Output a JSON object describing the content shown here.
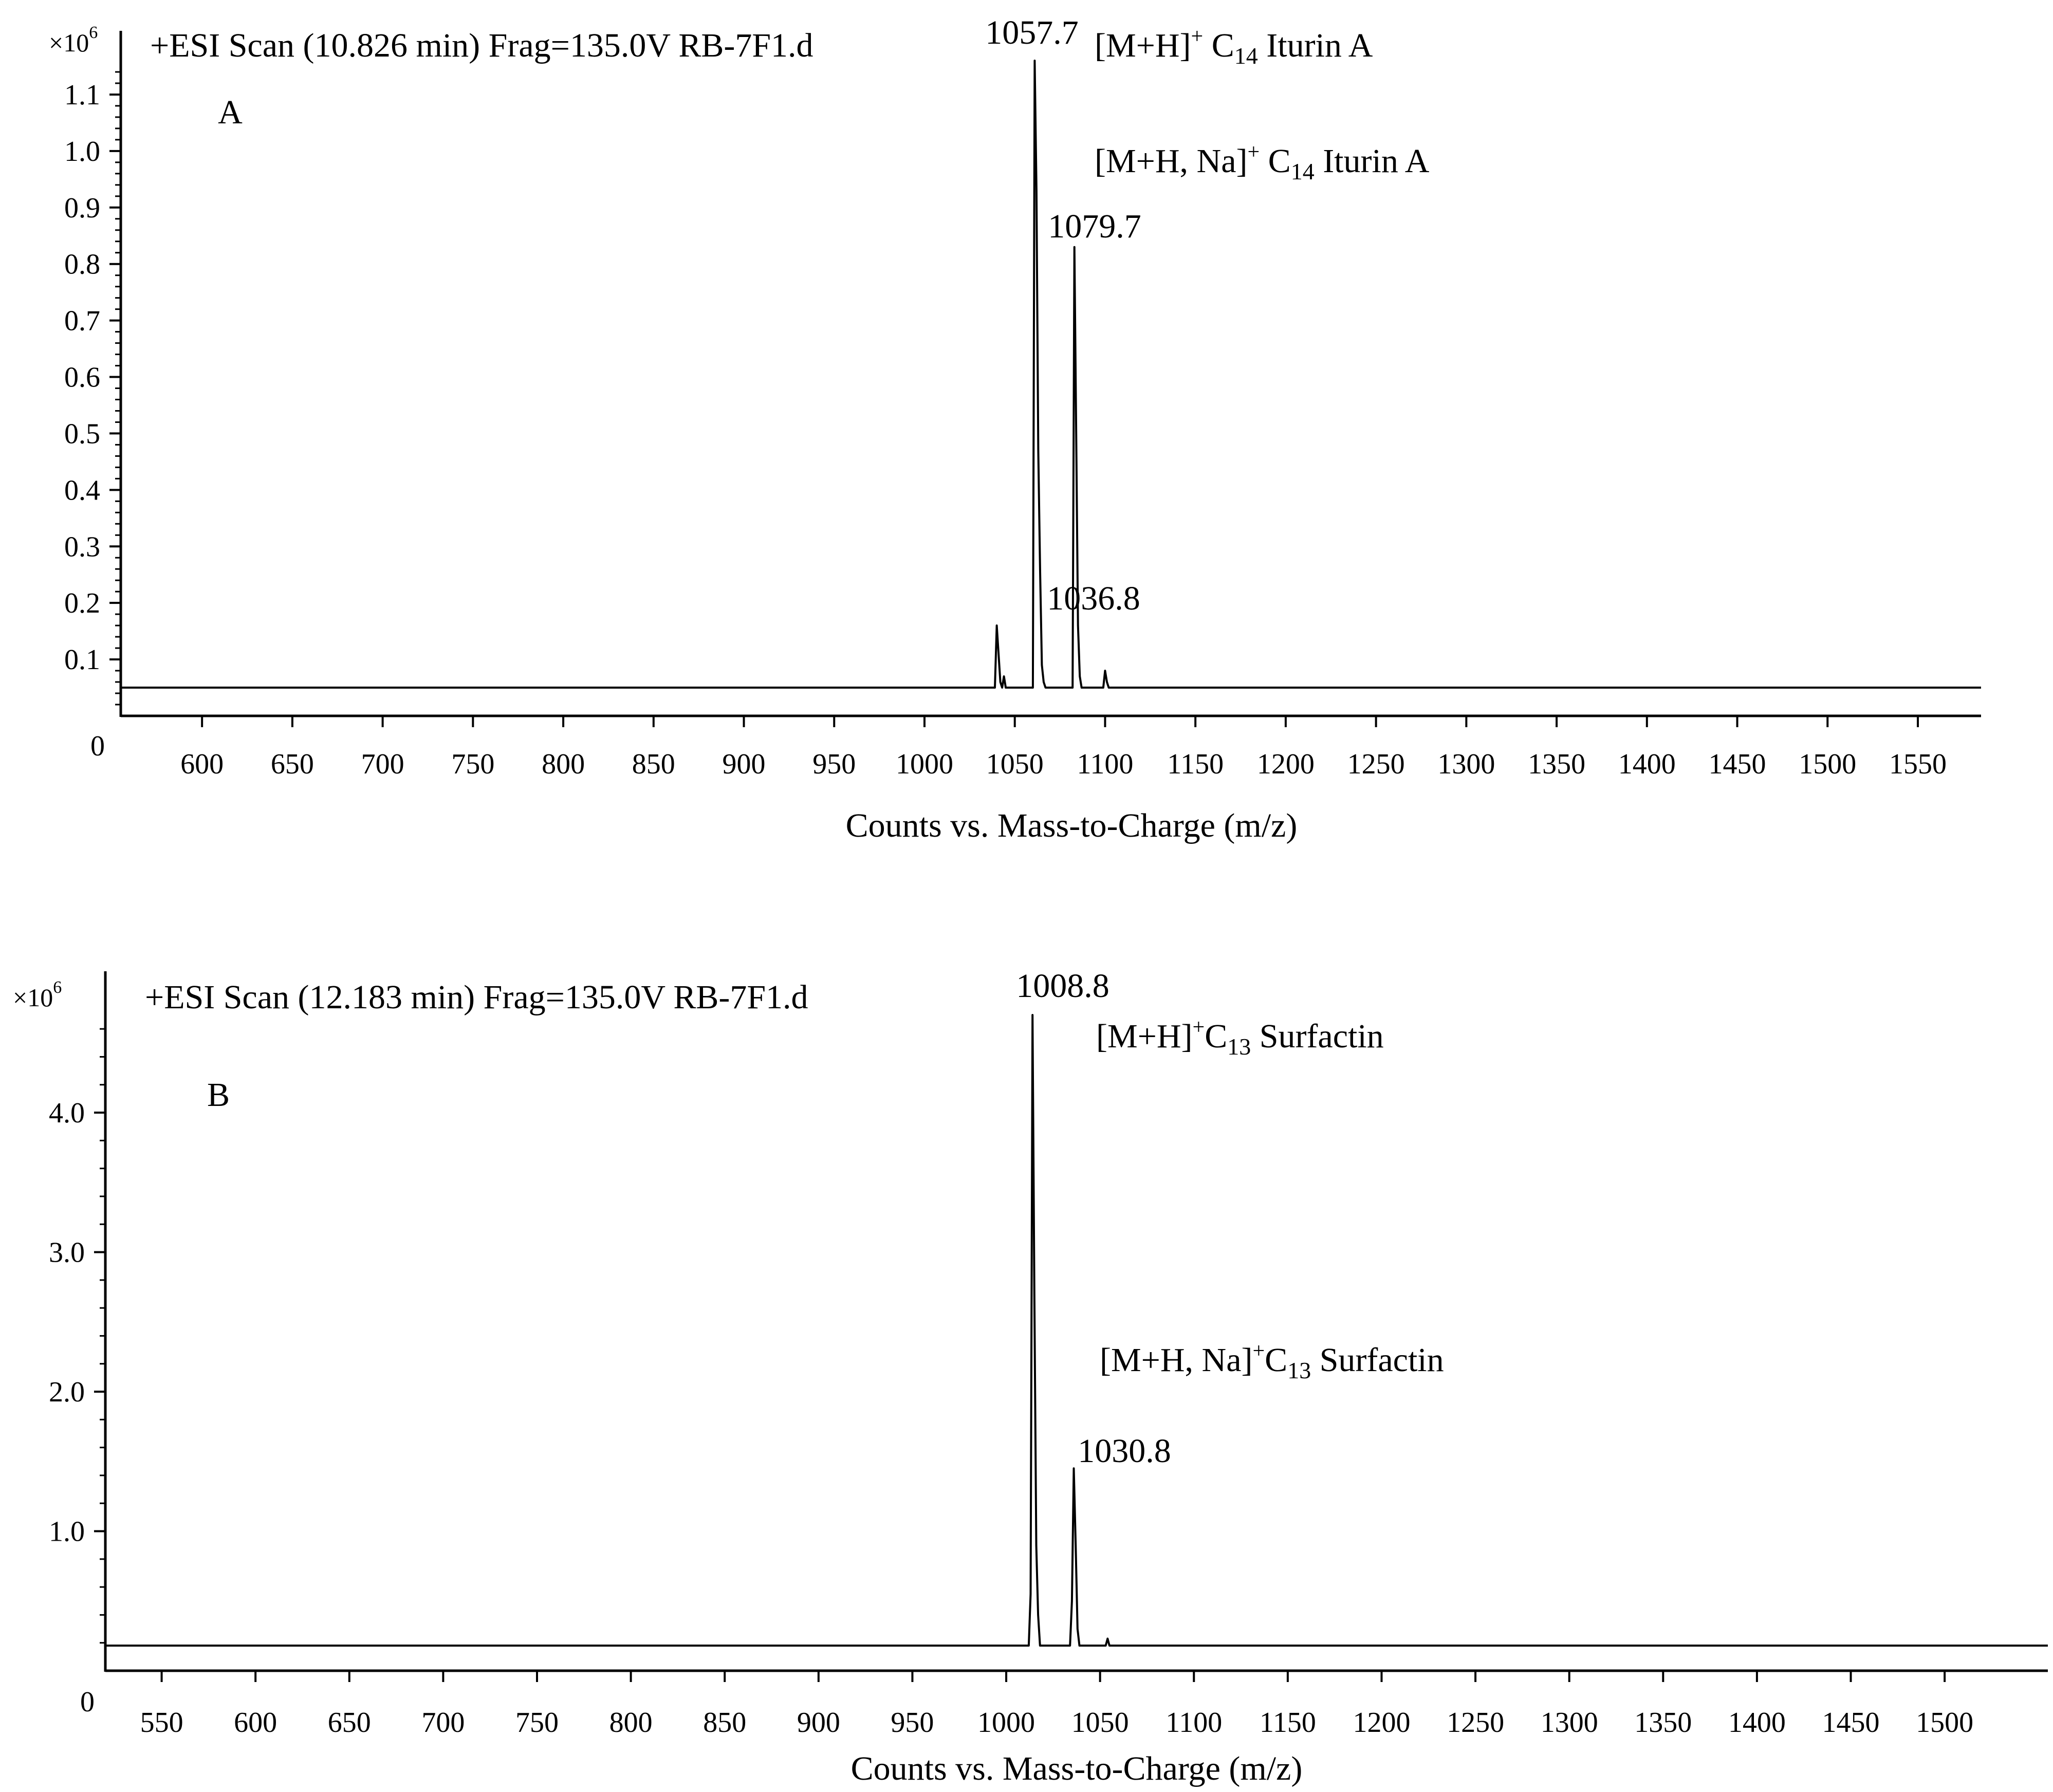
{
  "chart_data": [
    {
      "type": "line",
      "panel": "A",
      "title": "+ESI Scan (10.826 min) Frag=135.0V RB-7F1.d",
      "xlabel": "Counts vs. Mass-to-Charge (m/z)",
      "ylabel": "",
      "y_multiplier": {
        "base": "×10",
        "exp": "6"
      },
      "xlim": [
        555,
        1585
      ],
      "ylim": [
        0,
        1.16
      ],
      "baseline": 0.05,
      "x_ticks": [
        600,
        650,
        700,
        750,
        800,
        850,
        900,
        950,
        1000,
        1050,
        1100,
        1150,
        1200,
        1250,
        1300,
        1350,
        1400,
        1450,
        1500,
        1550
      ],
      "y_ticks": [
        0.1,
        0.2,
        0.3,
        0.4,
        0.5,
        0.6,
        0.7,
        0.8,
        0.9,
        1.0,
        1.1
      ],
      "y_zero_label": "0",
      "series": [
        {
          "x": [
            555,
            1009,
            1039,
            1040,
            1041,
            1042,
            1043,
            1044,
            1045,
            1046,
            1058,
            1060,
            1061,
            1062,
            1063,
            1064,
            1065,
            1066,
            1067,
            1070,
            1081,
            1082,
            1083,
            1084,
            1085,
            1086,
            1087,
            1099,
            1100,
            1101,
            1102,
            1103,
            1585
          ],
          "y": [
            0.05,
            0.05,
            0.05,
            0.16,
            0.11,
            0.06,
            0.05,
            0.07,
            0.05,
            0.05,
            0.05,
            0.05,
            1.16,
            0.93,
            0.47,
            0.26,
            0.09,
            0.06,
            0.05,
            0.05,
            0.05,
            0.05,
            0.83,
            0.5,
            0.16,
            0.07,
            0.05,
            0.05,
            0.08,
            0.06,
            0.05,
            0.05,
            0.05
          ]
        }
      ],
      "peak_labels": [
        {
          "mz": 1036.8,
          "text": "1036.8",
          "height": 0.16
        },
        {
          "mz": 1057.7,
          "text": "1057.7",
          "height": 1.16
        },
        {
          "mz": 1079.7,
          "text": "1079.7",
          "height": 0.83
        }
      ],
      "annotations": [
        {
          "pre": "[M+H]",
          "sup": "+",
          "mid": " C",
          "sub": "14",
          "post": " Iturin A"
        },
        {
          "pre": "[M+H, Na]",
          "sup": "+",
          "mid": " C",
          "sub": "14",
          "post": " Iturin A"
        }
      ]
    },
    {
      "type": "line",
      "panel": "B",
      "title": "+ESI Scan (12.183 min) Frag=135.0V RB-7F1.d",
      "xlabel": "Counts vs. Mass-to-Charge (m/z)",
      "ylabel": "",
      "y_multiplier": {
        "base": "×10",
        "exp": "6"
      },
      "xlim": [
        520,
        1555
      ],
      "ylim": [
        0,
        4.7
      ],
      "baseline": 0.18,
      "x_ticks": [
        550,
        600,
        650,
        700,
        750,
        800,
        850,
        900,
        950,
        1000,
        1050,
        1100,
        1150,
        1200,
        1250,
        1300,
        1350,
        1400,
        1450,
        1500
      ],
      "y_ticks": [
        1.0,
        2.0,
        3.0,
        4.0
      ],
      "y_zero_label": "0",
      "series": [
        {
          "x": [
            520,
            1012,
            1013,
            1014,
            1015,
            1016,
            1017,
            1018,
            1034,
            1035,
            1036,
            1037,
            1038,
            1039,
            1040,
            1053,
            1054,
            1055,
            1555
          ],
          "y": [
            0.18,
            0.18,
            0.55,
            4.7,
            2.7,
            0.9,
            0.4,
            0.18,
            0.18,
            0.5,
            1.45,
            0.9,
            0.3,
            0.18,
            0.18,
            0.18,
            0.23,
            0.18,
            0.18
          ]
        }
      ],
      "peak_labels": [
        {
          "mz": 1008.8,
          "text": "1008.8",
          "height": 4.7
        },
        {
          "mz": 1030.8,
          "text": "1030.8",
          "height": 1.45
        }
      ],
      "annotations": [
        {
          "pre": "[M+H]",
          "sup": "+",
          "mid": "C",
          "sub": "13",
          "post": " Surfactin"
        },
        {
          "pre": "[M+H, Na]",
          "sup": "+",
          "mid": "C",
          "sub": "13",
          "post": " Surfactin"
        }
      ]
    }
  ]
}
